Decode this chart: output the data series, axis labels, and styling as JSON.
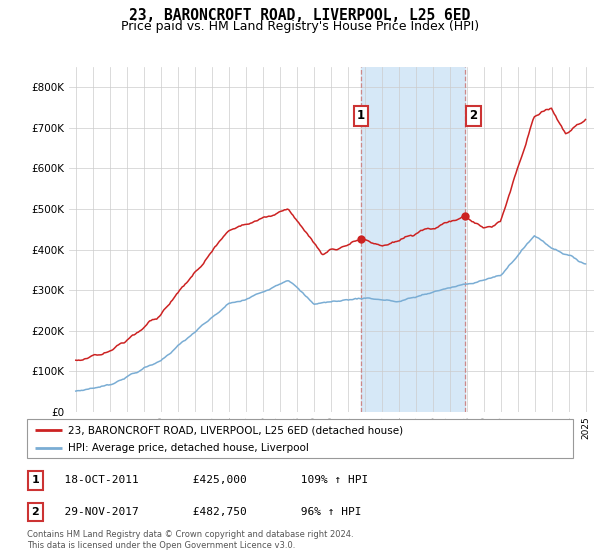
{
  "title": "23, BARONCROFT ROAD, LIVERPOOL, L25 6ED",
  "subtitle": "Price paid vs. HM Land Registry's House Price Index (HPI)",
  "title_fontsize": 10.5,
  "subtitle_fontsize": 9,
  "ylim": [
    0,
    850000
  ],
  "yticks": [
    0,
    100000,
    200000,
    300000,
    400000,
    500000,
    600000,
    700000,
    800000
  ],
  "ytick_labels": [
    "£0",
    "£100K",
    "£200K",
    "£300K",
    "£400K",
    "£500K",
    "£600K",
    "£700K",
    "£800K"
  ],
  "hpi_color": "#7aadd4",
  "price_color": "#cc2222",
  "shaded_region": [
    2011.79,
    2017.91
  ],
  "shaded_color": "#d6e8f7",
  "vline_color": "#cc8888",
  "purchase_1": {
    "date_num": 2011.79,
    "price": 425000,
    "label": "1"
  },
  "purchase_2": {
    "date_num": 2017.91,
    "price": 482750,
    "label": "2"
  },
  "legend_label_price": "23, BARONCROFT ROAD, LIVERPOOL, L25 6ED (detached house)",
  "legend_label_hpi": "HPI: Average price, detached house, Liverpool",
  "footnote_1": "Contains HM Land Registry data © Crown copyright and database right 2024.",
  "footnote_2": "This data is licensed under the Open Government Licence v3.0.",
  "table_rows": [
    {
      "num": "1",
      "date": "18-OCT-2011",
      "price": "£425,000",
      "hpi": "109% ↑ HPI"
    },
    {
      "num": "2",
      "date": "29-NOV-2017",
      "price": "£482,750",
      "hpi": "96% ↑ HPI"
    }
  ],
  "bg_color": "#ffffff",
  "grid_color": "#cccccc"
}
